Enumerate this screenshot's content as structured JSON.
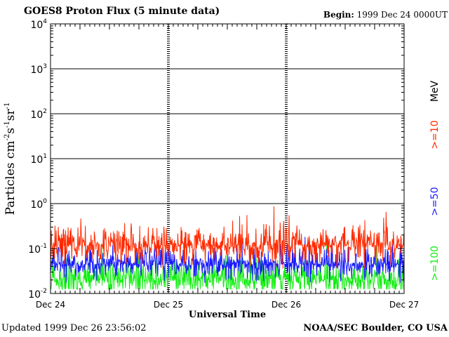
{
  "header": {
    "title": "GOES8 Proton Flux (5 minute data)",
    "begin_label": "Begin:",
    "begin_value": "1999 Dec 24 0000UT"
  },
  "footer": {
    "updated_label": "Updated",
    "updated_value": "1999 Dec 26 23:56:02",
    "credit": "NOAA/SEC Boulder, CO USA"
  },
  "chart_data": {
    "type": "line",
    "ylabel_base": "Particles cm",
    "xlabel": "Universal Time",
    "yscale": "log",
    "ylim": [
      0.01,
      10000
    ],
    "xlim": [
      "1999-12-24",
      "1999-12-27"
    ],
    "x_ticks": [
      "Dec 24",
      "Dec 25",
      "Dec 26",
      "Dec 27"
    ],
    "y_ticks": [
      {
        "base": "10",
        "exp": "-2"
      },
      {
        "base": "10",
        "exp": "-1"
      },
      {
        "base": "10",
        "exp": "0"
      },
      {
        "base": "10",
        "exp": "1"
      },
      {
        "base": "10",
        "exp": "2"
      },
      {
        "base": "10",
        "exp": "3"
      },
      {
        "base": "10",
        "exp": "4"
      }
    ],
    "unit_label": "MeV",
    "series": [
      {
        "name": ">=10",
        "color": "#ff2a00",
        "base": 0.12,
        "spread": 0.55
      },
      {
        "name": ">=50",
        "color": "#1a1aff",
        "base": 0.045,
        "spread": 0.45
      },
      {
        "name": ">=100",
        "color": "#11ee11",
        "base": 0.02,
        "spread": 0.55
      }
    ]
  }
}
